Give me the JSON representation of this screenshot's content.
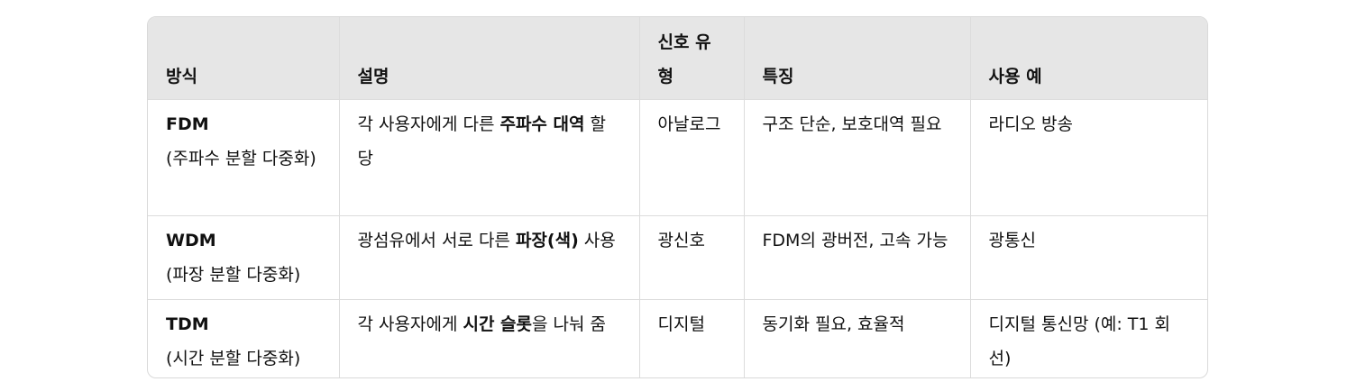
{
  "table": {
    "headers": [
      "방식",
      "설명",
      "신호 유형",
      "특징",
      "사용 예"
    ],
    "rows": [
      {
        "method_abbr": "FDM",
        "method_full": "(주파수 분할 다중화)",
        "desc_pre": "각 사용자에게 다른 ",
        "desc_bold": "주파수 대역",
        "desc_post": " 할당",
        "signal": "아날로그",
        "feature": "구조 단순, 보호대역 필요",
        "example": "라디오 방송"
      },
      {
        "method_abbr": "WDM",
        "method_full": "(파장 분할 다중화)",
        "desc_pre": "광섬유에서 서로 다른 ",
        "desc_bold": "파장(색)",
        "desc_post": " 사용",
        "signal": "광신호",
        "feature": "FDM의 광버전, 고속 가능",
        "example": "광통신"
      },
      {
        "method_abbr": "TDM",
        "method_full": "(시간 분할 다중화)",
        "desc_pre": "각 사용자에게 ",
        "desc_bold": "시간 슬롯",
        "desc_post": "을 나눠 줌",
        "signal": "디지털",
        "feature": "동기화 필요, 효율적",
        "example": "디지털 통신망 (예: T1 회선)"
      }
    ]
  }
}
